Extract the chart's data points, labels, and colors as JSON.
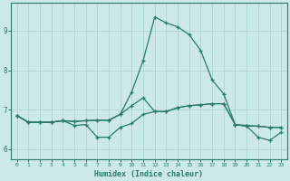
{
  "xlabel": "Humidex (Indice chaleur)",
  "background_color": "#cce9e9",
  "grid_color": "#b0d8d8",
  "line_color": "#2a7a6a",
  "xlim": [
    -0.5,
    23.5
  ],
  "ylim": [
    5.75,
    9.7
  ],
  "xticks": [
    0,
    1,
    2,
    3,
    4,
    5,
    6,
    7,
    8,
    9,
    10,
    11,
    12,
    13,
    14,
    15,
    16,
    17,
    18,
    19,
    20,
    21,
    22,
    23
  ],
  "yticks": [
    6,
    7,
    8,
    9
  ],
  "line1_x": [
    0,
    1,
    2,
    3,
    4,
    5,
    6,
    7,
    8,
    9,
    10,
    11,
    12,
    13,
    14,
    15,
    16,
    17,
    18,
    19,
    20,
    21,
    22,
    23
  ],
  "line1_y": [
    6.85,
    6.68,
    6.68,
    6.68,
    6.72,
    6.7,
    6.72,
    6.73,
    6.73,
    6.88,
    7.45,
    8.25,
    9.35,
    9.2,
    9.1,
    8.9,
    8.5,
    7.75,
    7.4,
    6.62,
    6.6,
    6.58,
    6.55,
    6.55
  ],
  "line2_x": [
    0,
    1,
    2,
    3,
    4,
    5,
    6,
    7,
    8,
    9,
    10,
    11,
    12,
    13,
    14,
    15,
    16,
    17,
    18,
    19,
    20,
    21,
    22,
    23
  ],
  "line2_y": [
    6.85,
    6.68,
    6.68,
    6.68,
    6.72,
    6.6,
    6.62,
    6.3,
    6.3,
    6.55,
    6.65,
    6.88,
    6.95,
    6.95,
    7.05,
    7.1,
    7.12,
    7.15,
    7.15,
    6.62,
    6.58,
    6.3,
    6.22,
    6.42
  ],
  "line3_x": [
    0,
    1,
    2,
    3,
    4,
    5,
    6,
    7,
    8,
    9,
    10,
    11,
    12,
    13,
    14,
    15,
    16,
    17,
    18,
    19,
    20,
    21,
    22,
    23
  ],
  "line3_y": [
    6.85,
    6.68,
    6.68,
    6.68,
    6.72,
    6.7,
    6.72,
    6.73,
    6.73,
    6.88,
    7.1,
    7.3,
    6.95,
    6.95,
    7.05,
    7.1,
    7.12,
    7.15,
    7.15,
    6.62,
    6.58,
    6.58,
    6.55,
    6.55
  ]
}
